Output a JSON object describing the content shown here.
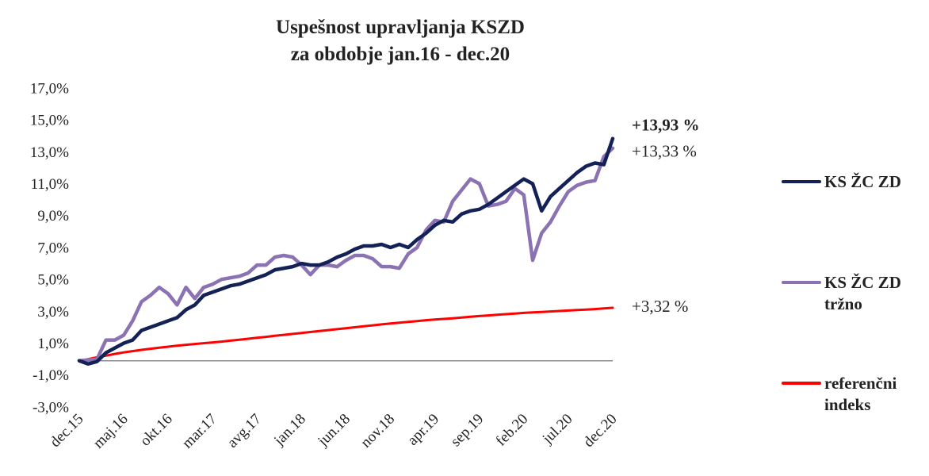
{
  "chart_data": {
    "type": "line",
    "title": [
      "Uspešnost upravljanja KSZD",
      "za obdobje jan.16 - dec.20"
    ],
    "categories": [
      "dec.15",
      null,
      null,
      null,
      null,
      "maj.16",
      null,
      null,
      null,
      null,
      "okt.16",
      null,
      null,
      null,
      null,
      "mar.17",
      null,
      null,
      null,
      null,
      "avg.17",
      null,
      null,
      null,
      null,
      "jan.18",
      null,
      null,
      null,
      null,
      "jun.18",
      null,
      null,
      null,
      null,
      "nov.18",
      null,
      null,
      null,
      null,
      "apr.19",
      null,
      null,
      null,
      null,
      "sep.19",
      null,
      null,
      null,
      null,
      "feb.20",
      null,
      null,
      null,
      null,
      "jul.20",
      null,
      null,
      null,
      null,
      "dec.20"
    ],
    "ylim": [
      -3,
      17
    ],
    "yticks": [
      {
        "value": -3,
        "label": "-3,0%"
      },
      {
        "value": -1,
        "label": "-1,0%"
      },
      {
        "value": 1,
        "label": "1,0%"
      },
      {
        "value": 3,
        "label": "3,0%"
      },
      {
        "value": 5,
        "label": "5,0%"
      },
      {
        "value": 7,
        "label": "7,0%"
      },
      {
        "value": 9,
        "label": "9,0%"
      },
      {
        "value": 11,
        "label": "11,0%"
      },
      {
        "value": 13,
        "label": "13,0%"
      },
      {
        "value": 15,
        "label": "15,0%"
      },
      {
        "value": 17,
        "label": "17,0%"
      }
    ],
    "grid": false,
    "legend": "right",
    "series": [
      {
        "name": "KS ŽC ZD",
        "color": "#132157",
        "value_labels": {
          "60": "+13,93 %"
        },
        "values": [
          0.0,
          -0.2,
          -0.05,
          0.5,
          0.8,
          1.1,
          1.3,
          1.9,
          2.1,
          2.3,
          2.5,
          2.7,
          3.2,
          3.5,
          4.1,
          4.3,
          4.5,
          4.7,
          4.8,
          5.0,
          5.2,
          5.4,
          5.7,
          5.8,
          5.9,
          6.1,
          6.0,
          6.0,
          6.2,
          6.5,
          6.7,
          7.0,
          7.2,
          7.2,
          7.3,
          7.1,
          7.3,
          7.1,
          7.6,
          8.0,
          8.5,
          8.8,
          8.7,
          9.2,
          9.4,
          9.5,
          9.8,
          10.2,
          10.6,
          11.0,
          11.4,
          11.1,
          9.4,
          10.3,
          10.8,
          11.3,
          11.8,
          12.2,
          12.4,
          12.3,
          13.93
        ]
      },
      {
        "name": "KS ŽC ZD tržno",
        "color": "#8b72b3",
        "value_labels": {
          "60": "+13,33 %"
        },
        "values": [
          0.0,
          0.05,
          0.1,
          1.3,
          1.3,
          1.6,
          2.5,
          3.7,
          4.1,
          4.6,
          4.2,
          3.5,
          4.6,
          3.9,
          4.6,
          4.8,
          5.1,
          5.2,
          5.3,
          5.5,
          6.0,
          6.0,
          6.5,
          6.6,
          6.5,
          6.0,
          5.4,
          6.0,
          6.0,
          5.9,
          6.3,
          6.6,
          6.6,
          6.4,
          5.9,
          5.9,
          5.8,
          6.7,
          7.1,
          8.2,
          8.8,
          8.7,
          10.0,
          10.7,
          11.4,
          11.1,
          9.7,
          9.8,
          10.0,
          10.8,
          10.4,
          6.3,
          8.0,
          8.7,
          9.7,
          10.6,
          11.0,
          11.2,
          11.3,
          12.8,
          13.33
        ]
      },
      {
        "name": "referenčni indeks",
        "color": "#ff0000",
        "value_labels": {
          "60": "+3,32 %"
        },
        "values": [
          0.0,
          0.1,
          0.22,
          0.32,
          0.43,
          0.52,
          0.6,
          0.68,
          0.75,
          0.82,
          0.88,
          0.94,
          1.0,
          1.05,
          1.1,
          1.15,
          1.2,
          1.26,
          1.32,
          1.38,
          1.44,
          1.5,
          1.56,
          1.62,
          1.68,
          1.74,
          1.8,
          1.86,
          1.92,
          1.98,
          2.04,
          2.1,
          2.16,
          2.22,
          2.28,
          2.34,
          2.39,
          2.44,
          2.49,
          2.54,
          2.58,
          2.62,
          2.66,
          2.71,
          2.76,
          2.8,
          2.84,
          2.88,
          2.92,
          2.96,
          3.0,
          3.03,
          3.06,
          3.09,
          3.12,
          3.15,
          3.18,
          3.21,
          3.24,
          3.28,
          3.32
        ]
      }
    ]
  }
}
